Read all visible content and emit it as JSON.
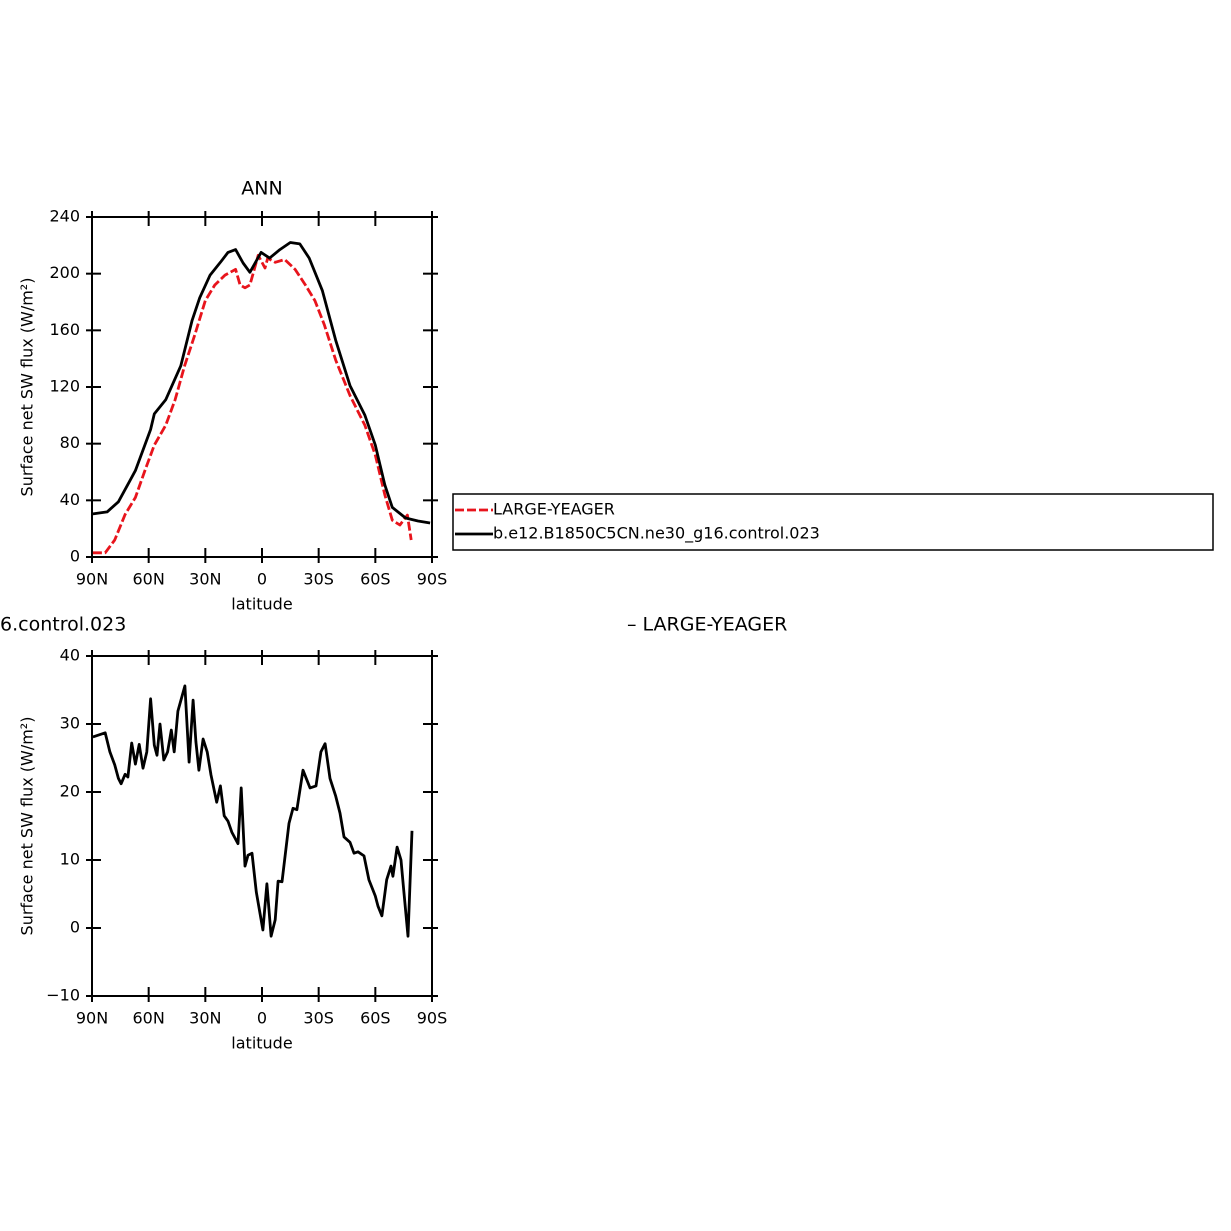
{
  "chart_data": [
    {
      "type": "line",
      "title": "ANN",
      "xlabel": "latitude",
      "ylabel": "Surface net SW flux (W/m²)",
      "xlim": [
        90,
        -90
      ],
      "xticks": [
        {
          "value": 90,
          "label": "90N"
        },
        {
          "value": 60,
          "label": "60N"
        },
        {
          "value": 30,
          "label": "30N"
        },
        0,
        {
          "value": -30,
          "label": "30S"
        },
        {
          "value": -60,
          "label": "60S"
        },
        {
          "value": -90,
          "label": "90S"
        }
      ],
      "ylim": [
        0,
        240
      ],
      "yticks": [
        0,
        40,
        80,
        120,
        160,
        200,
        240
      ],
      "legend": "outside-right",
      "series": [
        {
          "name": "LARGE-YEAGER",
          "color": "#e8141c",
          "dashed": true,
          "x": [
            89.5,
            83,
            78,
            72.5,
            67,
            62,
            57,
            51,
            46,
            41,
            35.5,
            30,
            25,
            19.6,
            14,
            11.6,
            9,
            6.4,
            2,
            -1.6,
            -3,
            -7,
            -12,
            -17.5,
            -23,
            -28,
            -33,
            -39,
            -46.6,
            -54.5,
            -60,
            -65,
            -69,
            -73,
            -77,
            -79
          ],
          "values": [
            3,
            3,
            12,
            30,
            42,
            61,
            79,
            93,
            111,
            135,
            157,
            181,
            192,
            199,
            203,
            192,
            190,
            192,
            213,
            204,
            211,
            208,
            210,
            203,
            192,
            181,
            164,
            139,
            114,
            93,
            72,
            44,
            26,
            22.6,
            29.6,
            12
          ]
        },
        {
          "name": "b.e12.B1850C5CN.ne30_g16.control.023",
          "color": "#000000",
          "dashed": false,
          "x": [
            89.5,
            82,
            76,
            67,
            59,
            57,
            51,
            43,
            37,
            33,
            27.5,
            22,
            18,
            14,
            10,
            6.4,
            0.5,
            -4,
            -9.5,
            -15,
            -20,
            -25,
            -32,
            -39,
            -46.6,
            -54.5,
            -60,
            -65,
            -69,
            -76,
            -82.6,
            -89
          ],
          "values": [
            30.4,
            31.8,
            39,
            61,
            90,
            101,
            111,
            135,
            167,
            183,
            199,
            208,
            215,
            217,
            207.5,
            201,
            215,
            211,
            217,
            222,
            221,
            211,
            188,
            153,
            121,
            100,
            79,
            51,
            35,
            27.5,
            25.4,
            24
          ]
        }
      ]
    },
    {
      "type": "line",
      "title_parts": [
        "6.control.023",
        "– LARGE-YEAGER"
      ],
      "xlabel": "latitude",
      "ylabel": "Surface net SW flux (W/m²)",
      "xlim": [
        90,
        -90
      ],
      "xticks": [
        {
          "value": 90,
          "label": "90N"
        },
        {
          "value": 60,
          "label": "60N"
        },
        {
          "value": 30,
          "label": "30N"
        },
        0,
        {
          "value": -30,
          "label": "30S"
        },
        {
          "value": -60,
          "label": "60S"
        },
        {
          "value": -90,
          "label": "90S"
        }
      ],
      "ylim": [
        -10,
        40
      ],
      "yticks": [
        {
          "value": -10,
          "label": "−10"
        },
        0,
        10,
        20,
        30,
        40
      ],
      "series": [
        {
          "color": "#000000",
          "dashed": false,
          "x": [
            89.5,
            83,
            80.5,
            78,
            76,
            74.6,
            72.5,
            71,
            69,
            67,
            65,
            63,
            61,
            59,
            57,
            55.6,
            54,
            52,
            50,
            48,
            46.5,
            44.5,
            40.8,
            38.6,
            36.5,
            35,
            33.4,
            31.2,
            29,
            27,
            24,
            22,
            20,
            18,
            16,
            12.7,
            11,
            9,
            7.4,
            5.3,
            3,
            -0.5,
            -2.6,
            -4.8,
            -7,
            -8.5,
            -10.6,
            -14.3,
            -16.4,
            -18.5,
            -21.7,
            -25.4,
            -28.6,
            -31.2,
            -33.4,
            -36,
            -39,
            -41.3,
            -43.4,
            -46.6,
            -48.7,
            -50.8,
            -54,
            -56.6,
            -60,
            -61.4,
            -63.5,
            -66,
            -68.3,
            -69.3,
            -71.5,
            -73.6,
            -75,
            -77.3,
            -79.4
          ],
          "values": [
            28.1,
            28.7,
            25.9,
            24,
            22,
            21.2,
            22.6,
            22.2,
            27.2,
            24.1,
            27,
            23.5,
            25.9,
            33.7,
            26.9,
            25.4,
            30,
            24.7,
            25.9,
            29.1,
            25.9,
            31.9,
            35.6,
            24.4,
            33.5,
            27.4,
            23.2,
            27.8,
            25.9,
            22.5,
            18.5,
            20.9,
            16.5,
            15.7,
            14.1,
            12.4,
            20.6,
            9.1,
            10.7,
            11,
            5.3,
            -0.3,
            6.5,
            -1.2,
            1.2,
            6.9,
            6.8,
            15.4,
            17.6,
            17.4,
            23.2,
            20.6,
            20.9,
            25.9,
            27.1,
            22,
            19.4,
            16.9,
            13.4,
            12.6,
            11,
            11.2,
            10.6,
            7.1,
            4.7,
            3.2,
            1.8,
            7.1,
            9.1,
            7.6,
            11.9,
            10,
            5.6,
            -1.2,
            14.3
          ]
        }
      ]
    }
  ]
}
